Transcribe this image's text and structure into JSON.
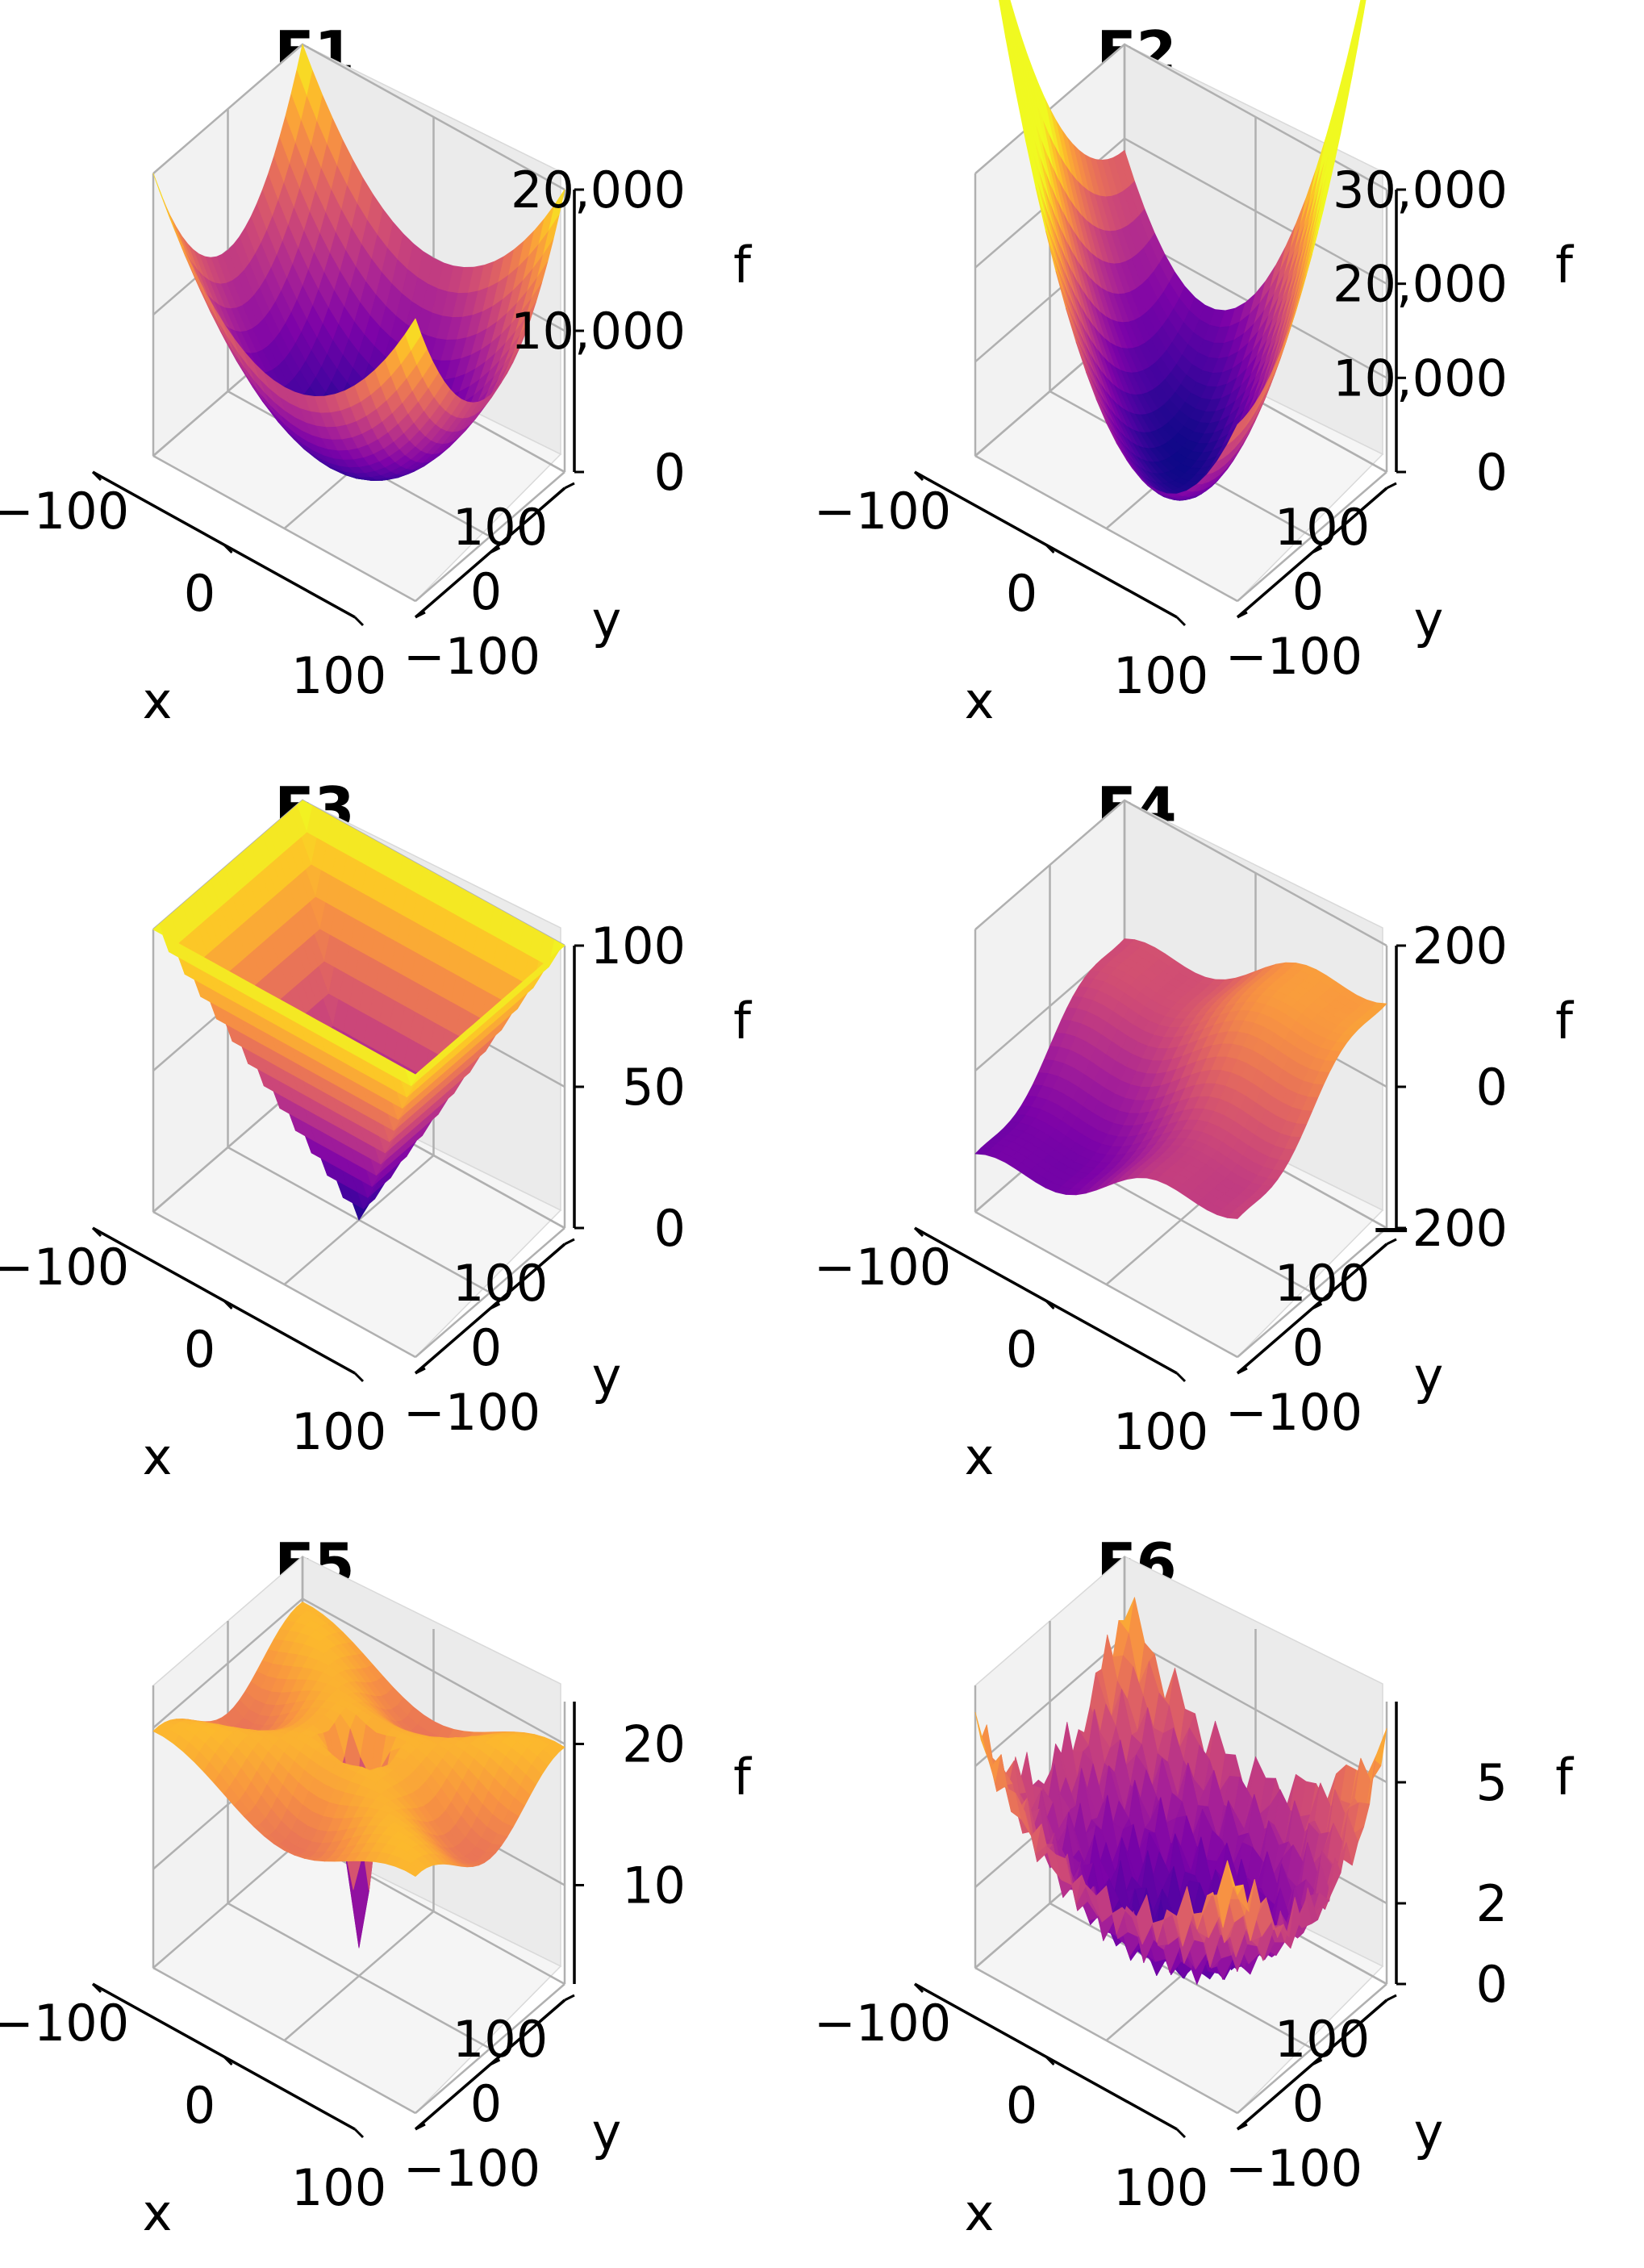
{
  "chart_data": [
    {
      "id": "F1",
      "type": "surface3d",
      "title": "F1",
      "xlabel": "x",
      "ylabel": "y",
      "zlabel": "f",
      "x_ticks": [
        "−100",
        "0",
        "100"
      ],
      "y_ticks": [
        "−100",
        "0",
        "100"
      ],
      "z_ticks": [
        "0",
        "10,000",
        "20,000"
      ],
      "z_tick_values": [
        0,
        10000,
        20000
      ],
      "xlim": [
        -100,
        100
      ],
      "ylim": [
        -100,
        100
      ],
      "zlim": [
        0,
        20000
      ],
      "surface": "sphere",
      "colormap": "plasma"
    },
    {
      "id": "F2",
      "type": "surface3d",
      "title": "F2",
      "xlabel": "x",
      "ylabel": "y",
      "zlabel": "f",
      "x_ticks": [
        "−100",
        "0",
        "100"
      ],
      "y_ticks": [
        "−100",
        "0",
        "100"
      ],
      "z_ticks": [
        "0",
        "10,000",
        "20,000",
        "30,000"
      ],
      "z_tick_values": [
        0,
        10000,
        20000,
        30000
      ],
      "xlim": [
        -100,
        100
      ],
      "ylim": [
        -100,
        100
      ],
      "zlim": [
        0,
        30000
      ],
      "surface": "cross-sum-squared",
      "colormap": "plasma"
    },
    {
      "id": "F3",
      "type": "surface3d",
      "title": "F3",
      "xlabel": "x",
      "ylabel": "y",
      "zlabel": "f",
      "x_ticks": [
        "−100",
        "0",
        "100"
      ],
      "y_ticks": [
        "−100",
        "0",
        "100"
      ],
      "z_ticks": [
        "0",
        "50",
        "100"
      ],
      "z_tick_values": [
        0,
        50,
        100
      ],
      "xlim": [
        -100,
        100
      ],
      "ylim": [
        -100,
        100
      ],
      "zlim": [
        0,
        100
      ],
      "surface": "max-abs",
      "colormap": "plasma"
    },
    {
      "id": "F4",
      "type": "surface3d",
      "title": "F4",
      "xlabel": "x",
      "ylabel": "y",
      "zlabel": "f",
      "x_ticks": [
        "−100",
        "0",
        "100"
      ],
      "y_ticks": [
        "−100",
        "0",
        "100"
      ],
      "z_ticks": [
        "−200",
        "0",
        "200"
      ],
      "z_tick_values": [
        -200,
        0,
        200
      ],
      "xlim": [
        -100,
        100
      ],
      "ylim": [
        -100,
        100
      ],
      "zlim": [
        -200,
        200
      ],
      "surface": "tilted-wavy-plane",
      "colormap": "plasma"
    },
    {
      "id": "F5",
      "type": "surface3d",
      "title": "F5",
      "xlabel": "x",
      "ylabel": "y",
      "zlabel": "f",
      "x_ticks": [
        "−100",
        "0",
        "100"
      ],
      "y_ticks": [
        "−100",
        "0",
        "100"
      ],
      "z_ticks": [
        "10",
        "20"
      ],
      "z_tick_values": [
        10,
        20
      ],
      "xlim": [
        -100,
        100
      ],
      "ylim": [
        -100,
        100
      ],
      "zlim": [
        3,
        23
      ],
      "surface": "ackley-like",
      "colormap": "plasma"
    },
    {
      "id": "F6",
      "type": "surface3d",
      "title": "F6",
      "xlabel": "x",
      "ylabel": "y",
      "zlabel": "f",
      "x_ticks": [
        "−100",
        "0",
        "100"
      ],
      "y_ticks": [
        "−100",
        "0",
        "100"
      ],
      "z_ticks": [
        "0",
        "2",
        "5"
      ],
      "z_tick_values": [
        0,
        2,
        5
      ],
      "xlim": [
        -100,
        100
      ],
      "ylim": [
        -100,
        100
      ],
      "zlim": [
        0,
        7
      ],
      "surface": "griewank-like",
      "colormap": "plasma"
    }
  ]
}
